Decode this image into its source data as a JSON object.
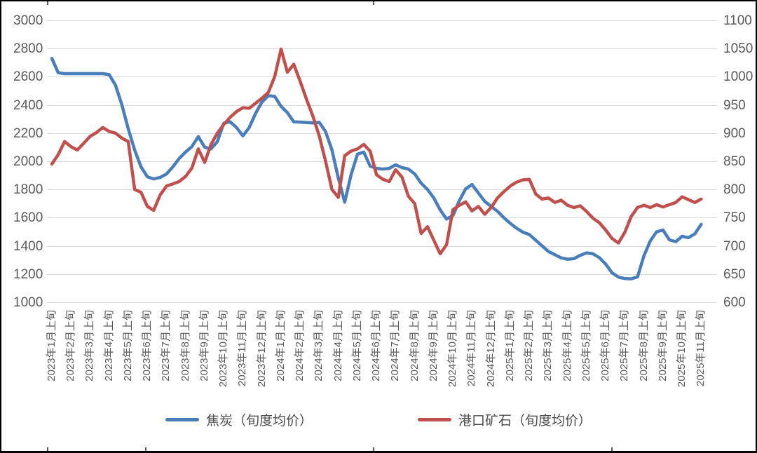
{
  "chart_data": {
    "type": "line",
    "title": "",
    "xlabel": "",
    "ylabel_left": "",
    "ylabel_right": "",
    "background": "#ffffff",
    "grid_color": "#d9d9d9",
    "axis_text_color": "#595959",
    "grid": "horizontal-on",
    "legend_position": "bottom",
    "points_per_month": 3,
    "x_unit": "旬（上旬/中旬/下旬）",
    "left_axis": {
      "min": 1000,
      "max": 3000,
      "step": 200,
      "ticks": [
        "3000",
        "2800",
        "2600",
        "2400",
        "2200",
        "2000",
        "1800",
        "1600",
        "1400",
        "1200",
        "1000"
      ]
    },
    "right_axis": {
      "min": 600,
      "max": 1100,
      "step": 50,
      "ticks": [
        "1100",
        "1050",
        "1000",
        "950",
        "900",
        "850",
        "800",
        "750",
        "700",
        "650",
        "600"
      ]
    },
    "x_tick_labels": [
      "2023年1月上旬",
      "2023年2月上旬",
      "2023年3月上旬",
      "2023年4月上旬",
      "2023年5月上旬",
      "2023年6月上旬",
      "2023年7月上旬",
      "2023年8月上旬",
      "2023年9月上旬",
      "2023年10月上旬",
      "2023年11月上旬",
      "2023年12月上旬",
      "2024年1月上旬",
      "2024年2月上旬",
      "2024年3月上旬",
      "2024年4月上旬",
      "2024年5月上旬",
      "2024年6月上旬",
      "2024年7月上旬",
      "2024年8月上旬",
      "2024年9月上旬",
      "2024年10月上旬",
      "2024年11月上旬",
      "2024年12月上旬",
      "2025年1月上旬",
      "2025年2月上旬",
      "2025年3月上旬",
      "2025年4月上旬",
      "2025年5月上旬",
      "2025年6月上旬",
      "2025年7月上旬",
      "2025年8月上旬",
      "2025年9月上旬",
      "2025年10月上旬",
      "2025年11月上旬"
    ],
    "series": [
      {
        "name": "焦炭（旬度均价）",
        "color": "#4a7ebb",
        "axis": "left",
        "values": [
          2730,
          2628,
          2622,
          2622,
          2622,
          2622,
          2622,
          2622,
          2622,
          2615,
          2540,
          2400,
          2230,
          2080,
          1960,
          1890,
          1875,
          1885,
          1910,
          1960,
          2020,
          2065,
          2105,
          2175,
          2100,
          2088,
          2140,
          2270,
          2280,
          2240,
          2180,
          2240,
          2340,
          2420,
          2465,
          2460,
          2390,
          2345,
          2280,
          2278,
          2275,
          2272,
          2276,
          2210,
          2080,
          1880,
          1710,
          1905,
          2050,
          2065,
          1965,
          1950,
          1945,
          1950,
          1975,
          1955,
          1945,
          1910,
          1845,
          1800,
          1740,
          1655,
          1590,
          1615,
          1720,
          1805,
          1835,
          1775,
          1715,
          1680,
          1645,
          1600,
          1560,
          1525,
          1497,
          1480,
          1440,
          1400,
          1360,
          1338,
          1315,
          1305,
          1309,
          1333,
          1350,
          1344,
          1316,
          1270,
          1209,
          1178,
          1168,
          1166,
          1180,
          1330,
          1435,
          1500,
          1512,
          1443,
          1430,
          1468,
          1458,
          1485,
          1552
        ]
      },
      {
        "name": "港口矿石（旬度均价）",
        "color": "#c0504d",
        "axis": "right",
        "values": [
          845,
          862,
          885,
          876,
          870,
          882,
          894,
          901,
          910,
          903,
          900,
          891,
          885,
          800,
          795,
          770,
          763,
          790,
          806,
          810,
          814,
          823,
          838,
          872,
          848,
          880,
          900,
          915,
          928,
          938,
          945,
          944,
          953,
          962,
          972,
          1000,
          1049,
          1008,
          1022,
          992,
          960,
          930,
          895,
          850,
          800,
          786,
          860,
          868,
          872,
          880,
          868,
          826,
          818,
          814,
          835,
          822,
          788,
          775,
          722,
          734,
          710,
          686,
          702,
          764,
          772,
          778,
          762,
          770,
          756,
          768,
          785,
          796,
          806,
          813,
          817,
          818,
          792,
          783,
          785,
          777,
          781,
          772,
          768,
          771,
          761,
          749,
          741,
          728,
          713,
          705,
          724,
          752,
          768,
          772,
          768,
          773,
          769,
          773,
          777,
          787,
          782,
          777,
          783
        ]
      }
    ]
  }
}
